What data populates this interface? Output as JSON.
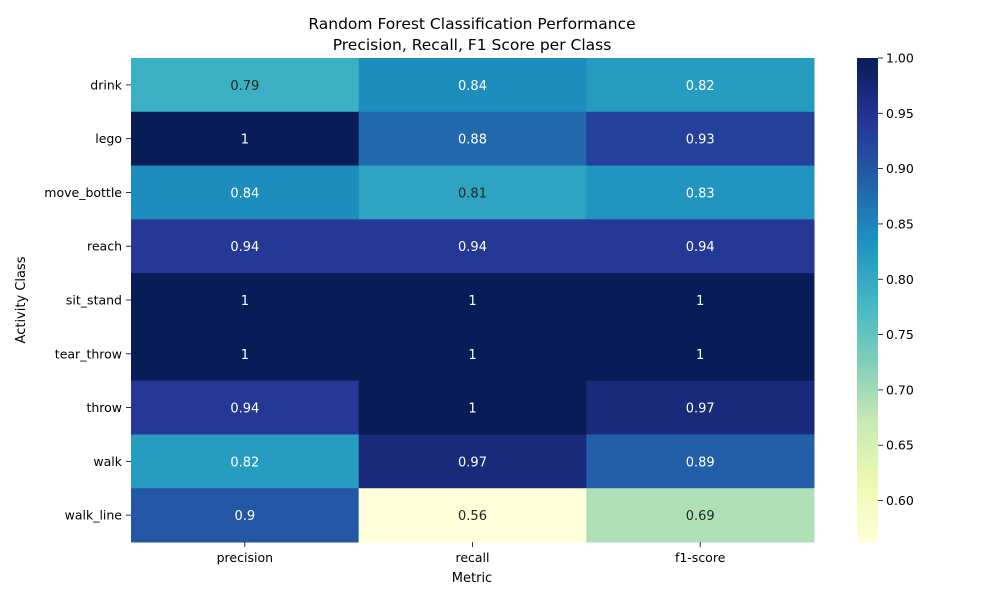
{
  "chart_data": {
    "type": "heatmap",
    "title_line1": "Random Forest Classification Performance",
    "title_line2": "Precision, Recall, F1 Score per Class",
    "xlabel": "Metric",
    "ylabel": "Activity Class",
    "columns": [
      "precision",
      "recall",
      "f1-score"
    ],
    "rows": [
      "drink",
      "lego",
      "move_bottle",
      "reach",
      "sit_stand",
      "tear_throw",
      "throw",
      "walk",
      "walk_line"
    ],
    "values": [
      [
        0.79,
        0.84,
        0.82
      ],
      [
        1,
        0.88,
        0.93
      ],
      [
        0.84,
        0.81,
        0.83
      ],
      [
        0.94,
        0.94,
        0.94
      ],
      [
        1,
        1,
        1
      ],
      [
        1,
        1,
        1
      ],
      [
        0.94,
        1,
        0.97
      ],
      [
        0.82,
        0.97,
        0.89
      ],
      [
        0.9,
        0.56,
        0.69
      ]
    ],
    "annotations": [
      [
        "0.79",
        "0.84",
        "0.82"
      ],
      [
        "1",
        "0.88",
        "0.93"
      ],
      [
        "0.84",
        "0.81",
        "0.83"
      ],
      [
        "0.94",
        "0.94",
        "0.94"
      ],
      [
        "1",
        "1",
        "1"
      ],
      [
        "1",
        "1",
        "1"
      ],
      [
        "0.94",
        "1",
        "0.97"
      ],
      [
        "0.82",
        "0.97",
        "0.89"
      ],
      [
        "0.9",
        "0.56",
        "0.69"
      ]
    ],
    "colormap": "YlGnBu",
    "vmin": 0.5625,
    "vmax": 1.0,
    "colorbar_ticks": [
      "0.60",
      "0.65",
      "0.70",
      "0.75",
      "0.80",
      "0.85",
      "0.90",
      "0.95",
      "1.00"
    ],
    "colorbar_tick_values": [
      0.6,
      0.65,
      0.7,
      0.75,
      0.8,
      0.85,
      0.9,
      0.95,
      1.0
    ],
    "colorbar_position": "right"
  }
}
